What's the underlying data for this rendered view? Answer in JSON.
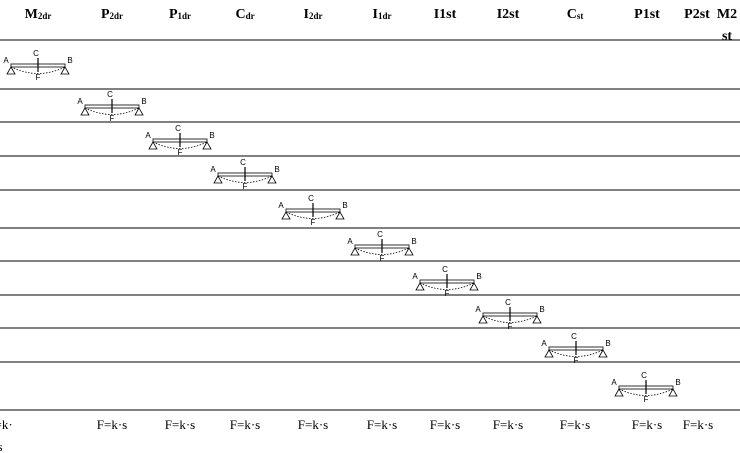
{
  "header": {
    "columns": [
      {
        "main": "M",
        "sub": "2dr"
      },
      {
        "main": "P",
        "sub": "2dr"
      },
      {
        "main": "P",
        "sub": "1dr"
      },
      {
        "main": "C",
        "sub": "dr"
      },
      {
        "main": "I",
        "sub": "2dr"
      },
      {
        "main": "I",
        "sub": "1dr"
      },
      {
        "main": "I1st"
      },
      {
        "main": "I2st"
      },
      {
        "main": "C",
        "sub": "st"
      },
      {
        "main": "P1st"
      },
      {
        "main": "P2st"
      },
      {
        "main": "M2st"
      }
    ]
  },
  "beam_labels": {
    "a": "A",
    "b": "B",
    "c": "C",
    "f": "F"
  },
  "footer": [
    "F=k·s",
    "F=k·s",
    "F=k·s",
    "F=k·s",
    "F=k·s",
    "F=k·s",
    "F=k·s",
    "F=k·s",
    "F=k·s",
    "F=k·s",
    "F=k·s"
  ]
}
